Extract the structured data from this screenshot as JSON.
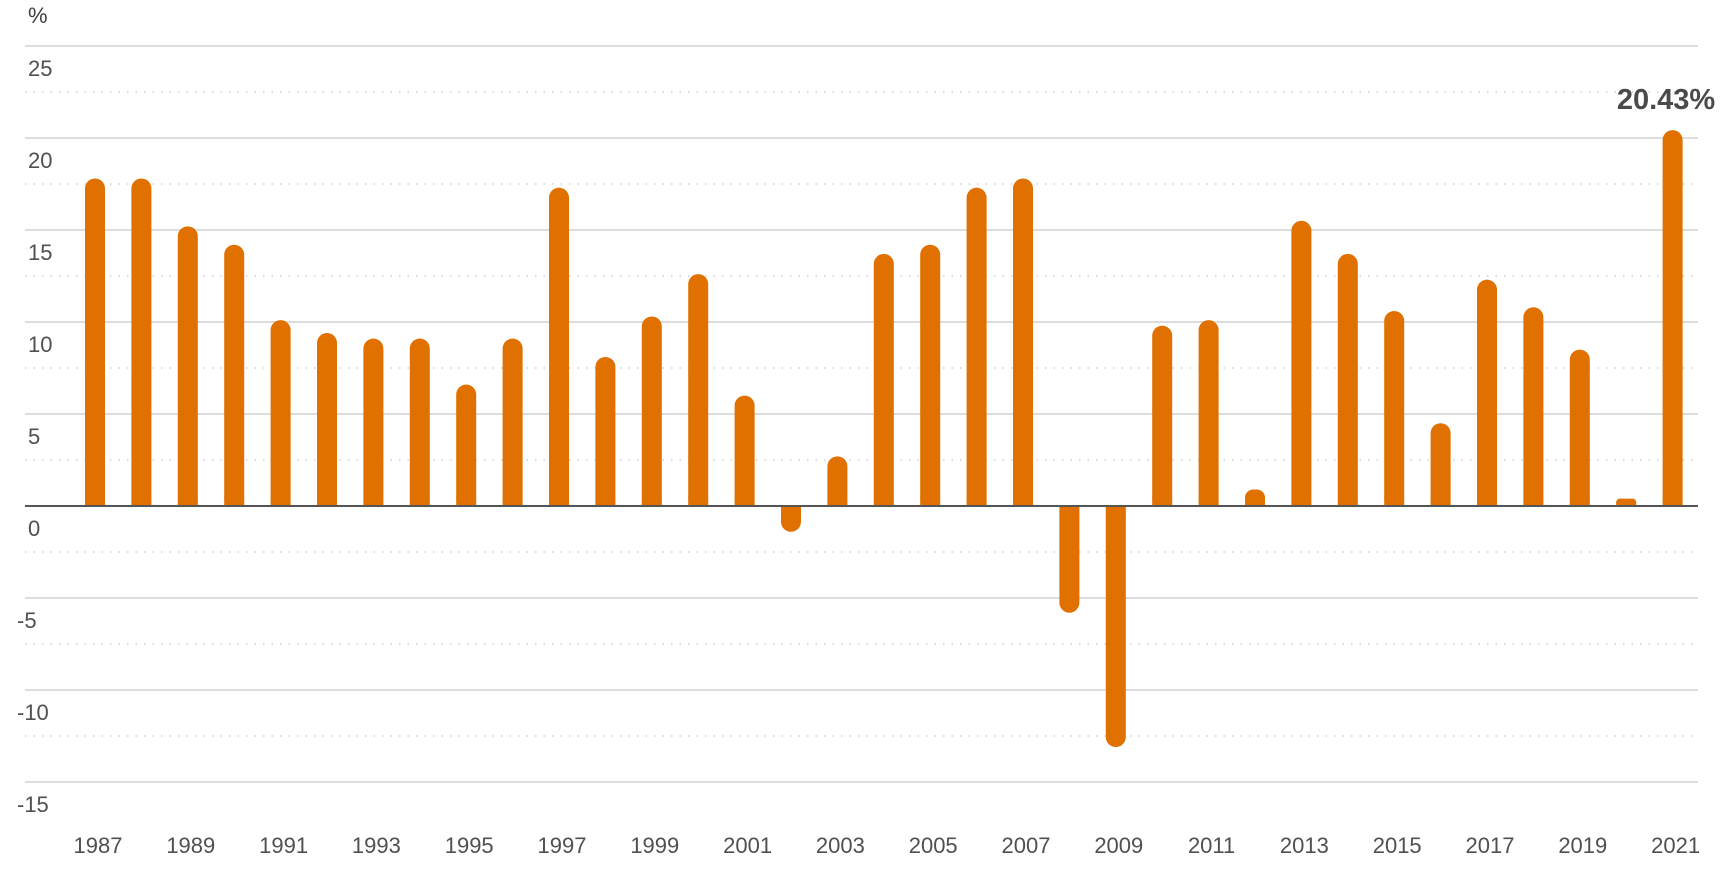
{
  "chart_data": {
    "type": "bar",
    "unit_label": "%",
    "ylim": [
      -15,
      25
    ],
    "y_ticks": [
      25,
      20,
      15,
      10,
      5,
      0,
      -5,
      -10,
      -15
    ],
    "grid": true,
    "color": "#E07000",
    "categories": [
      "1987",
      "1988",
      "1989",
      "1990",
      "1991",
      "1992",
      "1993",
      "1994",
      "1995",
      "1996",
      "1997",
      "1998",
      "1999",
      "2000",
      "2001",
      "2002",
      "2003",
      "2004",
      "2005",
      "2006",
      "2007",
      "2008",
      "2009",
      "2010",
      "2011",
      "2012",
      "2013",
      "2014",
      "2015",
      "2016",
      "2017",
      "2018",
      "2019",
      "2020",
      "2021"
    ],
    "x_tick_labels": [
      "1987",
      "1989",
      "1991",
      "1993",
      "1995",
      "1997",
      "1999",
      "2001",
      "2003",
      "2005",
      "2007",
      "2009",
      "2011",
      "2013",
      "2015",
      "2017",
      "2019",
      "2021"
    ],
    "values": [
      17.8,
      17.8,
      15.2,
      14.2,
      10.1,
      9.4,
      9.1,
      9.1,
      6.6,
      9.1,
      17.3,
      8.1,
      10.3,
      12.6,
      6.0,
      -1.4,
      2.7,
      13.7,
      14.2,
      17.3,
      17.8,
      -5.8,
      -13.1,
      9.8,
      10.1,
      0.9,
      15.5,
      13.7,
      10.6,
      4.5,
      12.3,
      10.8,
      8.5,
      0.4,
      20.43
    ],
    "callout": {
      "text": "20.43%",
      "category": "2021"
    }
  }
}
